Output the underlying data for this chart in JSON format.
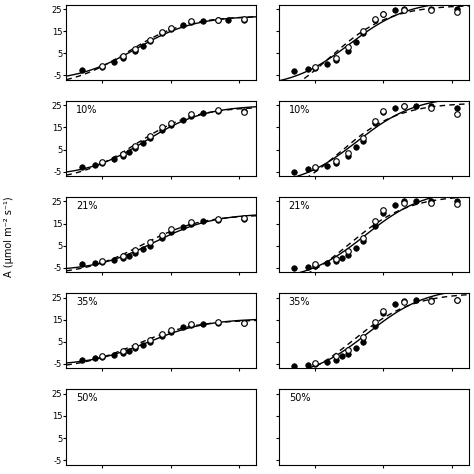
{
  "panels": [
    {
      "label": null,
      "col": 0,
      "row": 0,
      "solid_points": [
        [
          5,
          -2.5
        ],
        [
          10,
          -1
        ],
        [
          15,
          1
        ],
        [
          20,
          3
        ],
        [
          30,
          6
        ],
        [
          40,
          8.5
        ],
        [
          50,
          10.5
        ],
        [
          75,
          14
        ],
        [
          100,
          16
        ],
        [
          150,
          18
        ],
        [
          200,
          19
        ],
        [
          300,
          19.5
        ],
        [
          500,
          20
        ],
        [
          700,
          20
        ],
        [
          1200,
          20
        ]
      ],
      "dashed_points": [
        [
          10,
          -0.5
        ],
        [
          20,
          4
        ],
        [
          30,
          7
        ],
        [
          50,
          11
        ],
        [
          75,
          14.5
        ],
        [
          100,
          16.5
        ],
        [
          200,
          19.5
        ],
        [
          500,
          20.2
        ],
        [
          1200,
          20.5
        ]
      ],
      "ylim": [
        -7,
        27
      ],
      "yticks": [
        -5,
        5,
        15,
        25
      ]
    },
    {
      "label": null,
      "col": 1,
      "row": 0,
      "solid_points": [
        [
          5,
          -3
        ],
        [
          8,
          -2
        ],
        [
          10,
          -1.5
        ],
        [
          15,
          0
        ],
        [
          20,
          2
        ],
        [
          30,
          6
        ],
        [
          40,
          10
        ],
        [
          50,
          14
        ],
        [
          75,
          20
        ],
        [
          100,
          23
        ],
        [
          150,
          24.5
        ],
        [
          200,
          25
        ],
        [
          500,
          25.2
        ],
        [
          1200,
          25
        ]
      ],
      "dashed_points": [
        [
          10,
          -1
        ],
        [
          20,
          3
        ],
        [
          30,
          8
        ],
        [
          50,
          15
        ],
        [
          75,
          20.5
        ],
        [
          100,
          23
        ],
        [
          200,
          24.5
        ],
        [
          500,
          24.8
        ],
        [
          1200,
          23.5
        ]
      ],
      "ylim": [
        -7,
        27
      ],
      "yticks": [
        -5,
        5,
        15,
        25
      ]
    },
    {
      "label": "10%",
      "col": 0,
      "row": 1,
      "solid_points": [
        [
          5,
          -3
        ],
        [
          8,
          -2
        ],
        [
          10,
          -1
        ],
        [
          15,
          0.5
        ],
        [
          20,
          2
        ],
        [
          25,
          4
        ],
        [
          30,
          5.5
        ],
        [
          40,
          8
        ],
        [
          50,
          10
        ],
        [
          75,
          14
        ],
        [
          100,
          16
        ],
        [
          150,
          18.5
        ],
        [
          200,
          20
        ],
        [
          300,
          21.5
        ],
        [
          500,
          22.5
        ],
        [
          1200,
          22.5
        ]
      ],
      "dashed_points": [
        [
          10,
          -0.5
        ],
        [
          20,
          3
        ],
        [
          30,
          6.5
        ],
        [
          50,
          11
        ],
        [
          75,
          15
        ],
        [
          100,
          17
        ],
        [
          200,
          21
        ],
        [
          500,
          23
        ],
        [
          1200,
          22
        ]
      ],
      "ylim": [
        -7,
        27
      ],
      "yticks": [
        -5,
        5,
        15,
        25
      ]
    },
    {
      "label": "10%",
      "col": 1,
      "row": 1,
      "solid_points": [
        [
          5,
          -5
        ],
        [
          8,
          -4
        ],
        [
          10,
          -3.5
        ],
        [
          15,
          -2.5
        ],
        [
          20,
          -1
        ],
        [
          30,
          2
        ],
        [
          40,
          6
        ],
        [
          50,
          9
        ],
        [
          75,
          17
        ],
        [
          100,
          22
        ],
        [
          150,
          24
        ],
        [
          200,
          24.5
        ],
        [
          300,
          24.5
        ],
        [
          500,
          24.5
        ],
        [
          1200,
          24
        ]
      ],
      "dashed_points": [
        [
          10,
          -3
        ],
        [
          20,
          0
        ],
        [
          30,
          3.5
        ],
        [
          50,
          10
        ],
        [
          75,
          18
        ],
        [
          100,
          22.5
        ],
        [
          200,
          24.5
        ],
        [
          500,
          24
        ],
        [
          1200,
          21
        ]
      ],
      "ylim": [
        -7,
        27
      ],
      "yticks": [
        -5,
        5,
        15,
        25
      ]
    },
    {
      "label": "21%",
      "col": 0,
      "row": 2,
      "solid_points": [
        [
          5,
          -3.5
        ],
        [
          8,
          -3
        ],
        [
          10,
          -2.5
        ],
        [
          15,
          -1.5
        ],
        [
          20,
          -0.5
        ],
        [
          25,
          0.5
        ],
        [
          30,
          1.5
        ],
        [
          40,
          3.5
        ],
        [
          50,
          5
        ],
        [
          75,
          8.5
        ],
        [
          100,
          11
        ],
        [
          150,
          13.5
        ],
        [
          200,
          15
        ],
        [
          300,
          16
        ],
        [
          500,
          16.5
        ],
        [
          1200,
          17
        ]
      ],
      "dashed_points": [
        [
          10,
          -2
        ],
        [
          20,
          0.5
        ],
        [
          30,
          3
        ],
        [
          50,
          6.5
        ],
        [
          75,
          10
        ],
        [
          100,
          12.5
        ],
        [
          200,
          15.5
        ],
        [
          500,
          17
        ],
        [
          1200,
          17.5
        ]
      ],
      "ylim": [
        -7,
        27
      ],
      "yticks": [
        -5,
        5,
        15,
        25
      ]
    },
    {
      "label": "21%",
      "col": 1,
      "row": 2,
      "solid_points": [
        [
          5,
          -5
        ],
        [
          8,
          -4.5
        ],
        [
          10,
          -4
        ],
        [
          15,
          -3
        ],
        [
          20,
          -2
        ],
        [
          25,
          -0.5
        ],
        [
          30,
          1
        ],
        [
          40,
          4
        ],
        [
          50,
          7
        ],
        [
          75,
          14
        ],
        [
          100,
          20
        ],
        [
          150,
          23.5
        ],
        [
          200,
          25
        ],
        [
          300,
          25
        ],
        [
          500,
          25
        ],
        [
          1200,
          25
        ]
      ],
      "dashed_points": [
        [
          10,
          -3.5
        ],
        [
          20,
          -1
        ],
        [
          30,
          2.5
        ],
        [
          50,
          8.5
        ],
        [
          75,
          16
        ],
        [
          100,
          21
        ],
        [
          200,
          24.5
        ],
        [
          500,
          24.5
        ],
        [
          1200,
          24
        ]
      ],
      "ylim": [
        -7,
        27
      ],
      "yticks": [
        -5,
        5,
        15,
        25
      ]
    },
    {
      "label": "35%",
      "col": 0,
      "row": 3,
      "solid_points": [
        [
          5,
          -3
        ],
        [
          8,
          -2.5
        ],
        [
          10,
          -2
        ],
        [
          15,
          -1
        ],
        [
          20,
          0
        ],
        [
          25,
          1
        ],
        [
          30,
          2
        ],
        [
          40,
          3.5
        ],
        [
          50,
          5
        ],
        [
          75,
          7.5
        ],
        [
          100,
          9.5
        ],
        [
          150,
          11.5
        ],
        [
          200,
          12.5
        ],
        [
          300,
          13
        ],
        [
          500,
          13.5
        ],
        [
          1200,
          13.5
        ]
      ],
      "dashed_points": [
        [
          10,
          -1.5
        ],
        [
          20,
          1
        ],
        [
          30,
          3
        ],
        [
          50,
          6
        ],
        [
          75,
          8.5
        ],
        [
          100,
          10.5
        ],
        [
          200,
          13
        ],
        [
          500,
          13.8
        ],
        [
          1200,
          13.5
        ]
      ],
      "ylim": [
        -7,
        27
      ],
      "yticks": [
        -5,
        5,
        15,
        25
      ]
    },
    {
      "label": "35%",
      "col": 1,
      "row": 3,
      "solid_points": [
        [
          5,
          -6
        ],
        [
          8,
          -5.5
        ],
        [
          10,
          -5
        ],
        [
          15,
          -4
        ],
        [
          20,
          -3
        ],
        [
          25,
          -1.5
        ],
        [
          30,
          -0.5
        ],
        [
          40,
          2
        ],
        [
          50,
          5
        ],
        [
          75,
          12
        ],
        [
          100,
          18
        ],
        [
          150,
          22
        ],
        [
          200,
          23.5
        ],
        [
          300,
          24
        ],
        [
          500,
          24
        ],
        [
          1200,
          24
        ]
      ],
      "dashed_points": [
        [
          10,
          -4.5
        ],
        [
          20,
          -1.5
        ],
        [
          30,
          1.5
        ],
        [
          50,
          7
        ],
        [
          75,
          14
        ],
        [
          100,
          19
        ],
        [
          200,
          23
        ],
        [
          500,
          23.5
        ],
        [
          1200,
          24
        ]
      ],
      "ylim": [
        -7,
        27
      ],
      "yticks": [
        -5,
        5,
        15,
        25
      ]
    },
    {
      "label": "50%",
      "col": 0,
      "row": 4,
      "solid_points": [],
      "dashed_points": [],
      "ylim": [
        -7,
        27
      ],
      "yticks": [
        -5,
        5,
        15,
        25
      ]
    },
    {
      "label": "50%",
      "col": 1,
      "row": 4,
      "solid_points": [],
      "dashed_points": [],
      "ylim": [
        -7,
        27
      ],
      "yticks": [
        -5,
        5,
        15,
        25
      ]
    }
  ],
  "nrows": 5,
  "ncols": 2,
  "ylabel": "A (μmol m⁻² s⁻¹)",
  "markersize": 4,
  "linewidth": 1.0,
  "background": "white",
  "xlog": true,
  "xlim": [
    3,
    1800
  ],
  "xticks": [
    10,
    100,
    1000
  ]
}
